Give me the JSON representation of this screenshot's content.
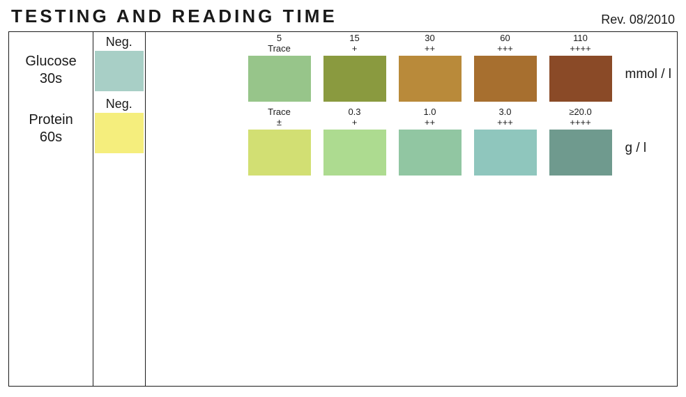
{
  "header": {
    "title": "TESTING AND READING TIME",
    "revision": "Rev. 08/2010"
  },
  "analytes": [
    {
      "name": "Glucose",
      "time": "30s",
      "unit": "mmol / l",
      "negative": {
        "label": "Neg.",
        "color": "#a8cfc6"
      },
      "levels": [
        {
          "value": "5",
          "symbol": "Trace",
          "color": "#97c58a"
        },
        {
          "value": "15",
          "symbol": "+",
          "color": "#8a9a3f"
        },
        {
          "value": "30",
          "symbol": "++",
          "color": "#b98a3a"
        },
        {
          "value": "60",
          "symbol": "+++",
          "color": "#a76f2f"
        },
        {
          "value": "110",
          "symbol": "++++",
          "color": "#8a4a27"
        }
      ]
    },
    {
      "name": "Protein",
      "time": "60s",
      "unit": "g / l",
      "negative": {
        "label": "Neg.",
        "color": "#f5ee7d"
      },
      "levels": [
        {
          "value": "Trace",
          "symbol": "±",
          "color": "#d2df73"
        },
        {
          "value": "0.3",
          "symbol": "+",
          "color": "#addb90"
        },
        {
          "value": "1.0",
          "symbol": "++",
          "color": "#91c6a2"
        },
        {
          "value": "3.0",
          "symbol": "+++",
          "color": "#8fc6bd"
        },
        {
          "value": "≥20.0",
          "symbol": "++++",
          "color": "#6f9a8e"
        }
      ]
    }
  ],
  "layout": {
    "swatch_neg_w": 70,
    "swatch_neg_h": 58,
    "swatch_w": 90,
    "swatch_h": 66,
    "level_cell_w": 108,
    "scale_left_indent": 130,
    "title_fontsize": 26,
    "title_letterspacing": 4,
    "label_fontsize": 20,
    "unit_fontsize": 19,
    "level_label_fontsize": 13,
    "border_color": "#1a1a1a",
    "text_color": "#1a1a1a",
    "background": "#ffffff"
  }
}
